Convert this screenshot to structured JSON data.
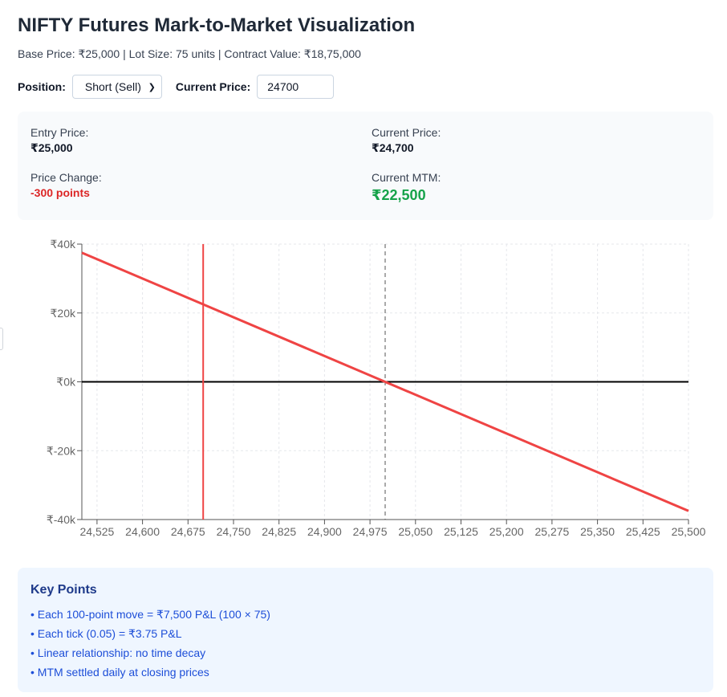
{
  "header": {
    "title": "NIFTY Futures Mark-to-Market Visualization",
    "subtitle": "Base Price: ₹25,000 | Lot Size: 75 units | Contract Value: ₹18,75,000"
  },
  "controls": {
    "position_label": "Position:",
    "position_value": "Short (Sell)",
    "price_label": "Current Price:",
    "price_value": "24700"
  },
  "stats": {
    "entry_label": "Entry Price:",
    "entry_value": "₹25,000",
    "current_label": "Current Price:",
    "current_value": "₹24,700",
    "change_label": "Price Change:",
    "change_value": "-300 points",
    "mtm_label": "Current MTM:",
    "mtm_value": "₹22,500"
  },
  "chart_data": {
    "type": "line",
    "series": [
      {
        "x": [
          24500,
          25500
        ],
        "y": [
          37500,
          -37500
        ]
      }
    ],
    "x_ticks": [
      24525,
      24600,
      24675,
      24750,
      24825,
      24900,
      24975,
      25050,
      25125,
      25200,
      25275,
      25350,
      25425,
      25500
    ],
    "x_tick_labels": [
      "24,525",
      "24,600",
      "24,675",
      "24,750",
      "24,825",
      "24,900",
      "24,975",
      "25,050",
      "25,125",
      "25,200",
      "25,275",
      "25,350",
      "25,425",
      "25,500"
    ],
    "y_ticks": [
      40000,
      20000,
      0,
      -20000,
      -40000
    ],
    "y_tick_labels": [
      "₹40k",
      "₹20k",
      "₹0k",
      "₹-20k",
      "₹-40k"
    ],
    "xlim": [
      24500,
      25500
    ],
    "ylim": [
      -40000,
      40000
    ],
    "current_price_marker": 24700,
    "entry_price_marker": 25000,
    "zero_line": 0,
    "grid": true,
    "colors": {
      "line": "#ef4444",
      "current_marker": "#ef4444",
      "entry_marker": "#555555",
      "zero_line": "#000000",
      "grid": "#e5e7eb",
      "axis": "#555555"
    }
  },
  "key_points": {
    "title": "Key Points",
    "items": [
      "• Each 100-point move = ₹7,500 P&L (100 × 75)",
      "• Each tick (0.05) = ₹3.75 P&L",
      "• Linear relationship: no time decay",
      "• MTM settled daily at closing prices"
    ]
  }
}
